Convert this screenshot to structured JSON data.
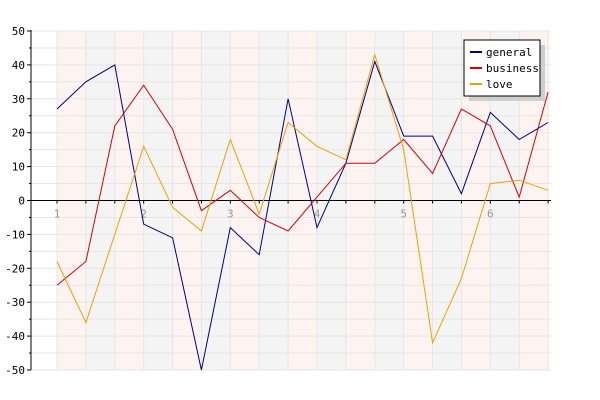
{
  "chart_data": {
    "type": "line",
    "title": "",
    "xlabel": "",
    "ylabel": "",
    "ylim": [
      -50,
      50
    ],
    "y_ticks": [
      -50,
      -40,
      -30,
      -20,
      -10,
      0,
      10,
      20,
      30,
      40,
      50
    ],
    "x_range": [
      0.7,
      6.7
    ],
    "x_ticks": [
      1,
      2,
      3,
      4,
      5,
      6
    ],
    "x_tick_labels": [
      "1",
      "2",
      "3",
      "4",
      "5",
      "6"
    ],
    "grid": true,
    "legend_position": "top-right",
    "x": [
      1,
      1.3333,
      1.6667,
      2,
      2.3333,
      2.6667,
      3,
      3.3333,
      3.6667,
      4,
      4.3333,
      4.6667,
      5,
      5.3333,
      5.6667,
      6,
      6.3333,
      6.6667
    ],
    "series": [
      {
        "name": "general",
        "color": "#000080",
        "values": [
          27,
          35,
          40,
          -7,
          -11,
          -50,
          -8,
          -16,
          30,
          -8,
          11,
          41,
          19,
          19,
          2,
          26,
          18,
          23
        ]
      },
      {
        "name": "business",
        "color": "#dd0000",
        "values": [
          -25,
          -18,
          22,
          34,
          21,
          -3,
          3,
          -5,
          -9,
          1,
          11,
          11,
          18,
          8,
          27,
          22,
          1,
          32
        ]
      },
      {
        "name": "love",
        "color": "#f0a000",
        "values": [
          -18,
          -36,
          -10,
          16,
          -2,
          -9,
          18,
          -4,
          23,
          16,
          12,
          43,
          15,
          -42,
          -23,
          5,
          6,
          3
        ]
      }
    ]
  }
}
